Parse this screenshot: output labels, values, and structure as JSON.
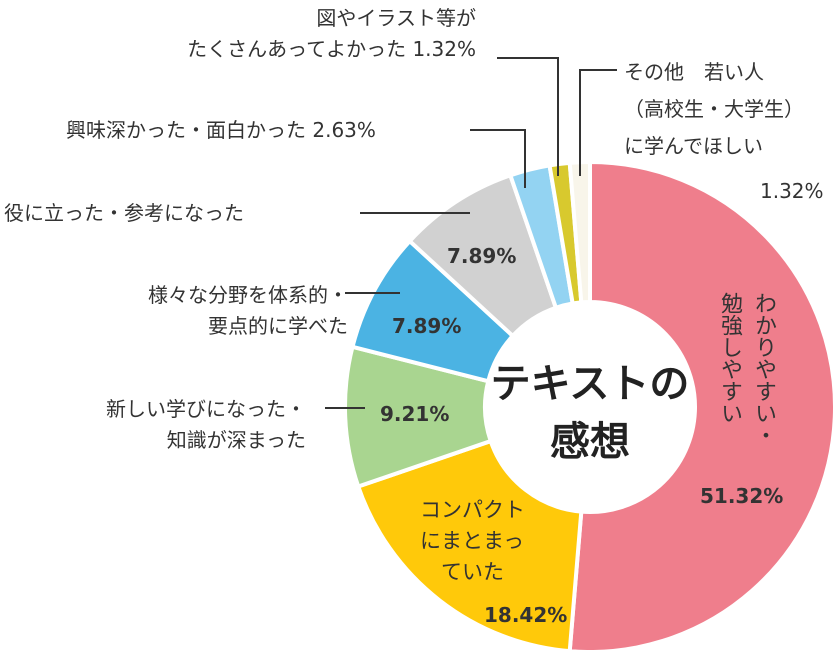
{
  "chart_data": {
    "type": "pie",
    "donut": true,
    "center_label": "テキストの感想",
    "slices": [
      {
        "label": "わかりやすい・勉強しやすい",
        "value": 51.32,
        "color": "#ef7e8c"
      },
      {
        "label": "コンパクトにまとまっていた",
        "value": 18.42,
        "color": "#ffc90a"
      },
      {
        "label": "新しい学びになった・知識が深まった",
        "value": 9.21,
        "color": "#a9d590"
      },
      {
        "label": "様々な分野を体系的・要点的に学べた",
        "value": 7.89,
        "color": "#4bb3e3"
      },
      {
        "label": "役に立った・参考になった",
        "value": 7.89,
        "color": "#d1d1d1"
      },
      {
        "label": "興味深かった・面白かった",
        "value": 2.63,
        "color": "#93d3f2"
      },
      {
        "label": "図やイラスト等がたくさんあってよかった",
        "value": 1.32,
        "color": "#d8c92e"
      },
      {
        "label": "その他 若い人（高校生・大学生）に学んでほしい",
        "value": 1.32,
        "color": "#f8f5ea"
      }
    ],
    "pct_labels": [
      "51.32%",
      "18.42%",
      "9.21%",
      "7.89%",
      "7.89%",
      "2.63%",
      "1.32%",
      "1.32%"
    ]
  },
  "text": {
    "pink": "わかりやすい・\n勉強しやすい",
    "yellow": "コンパクト\nにまとまっ\n　ていた",
    "green": "新しい学びになった・\n知識が深まった",
    "blue": "様々な分野を体系的・\n要点的に学べた",
    "gray": "役に立った・参考になった",
    "lightblue": "興味深かった・面白かった 2.63%",
    "yg": "図やイラスト等が\nたくさんあってよかった 1.32%",
    "other": "その他　若い人\n（高校生・大学生）\nに学んでほしい",
    "other_pct": "1.32%",
    "center1": "テキストの",
    "center2": "感想"
  }
}
